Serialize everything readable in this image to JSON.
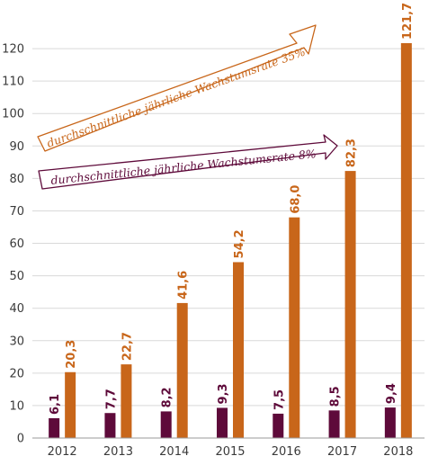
{
  "chart_data": {
    "type": "bar",
    "title": "",
    "xlabel": "",
    "ylabel": "",
    "ylim": [
      0,
      130
    ],
    "yticks": [
      0,
      10,
      20,
      30,
      40,
      50,
      60,
      70,
      80,
      90,
      100,
      110,
      120
    ],
    "grid": true,
    "categories": [
      "2012",
      "2013",
      "2014",
      "2015",
      "2016",
      "2017",
      "2018"
    ],
    "series": [
      {
        "color": "#5e0a3a",
        "values": [
          6.1,
          7.7,
          8.2,
          9.3,
          7.5,
          8.5,
          9.4
        ],
        "labels": [
          "6,1",
          "7,7",
          "8,2",
          "9,3",
          "7,5",
          "8,5",
          "9,4"
        ]
      },
      {
        "color": "#c8661a",
        "values": [
          20.3,
          22.7,
          41.6,
          54.2,
          68.0,
          82.3,
          121.7
        ],
        "labels": [
          "20,3",
          "22,7",
          "41,6",
          "54,2",
          "68,0",
          "82,3",
          "121,7"
        ]
      }
    ],
    "annotations": [
      {
        "text": "durchschnittliche jährliche Wachstumsrate 35%",
        "color": "#c8661a"
      },
      {
        "text": "durchschnittliche jährliche Wachstumsrate 8%",
        "color": "#5e0a3a"
      }
    ]
  }
}
